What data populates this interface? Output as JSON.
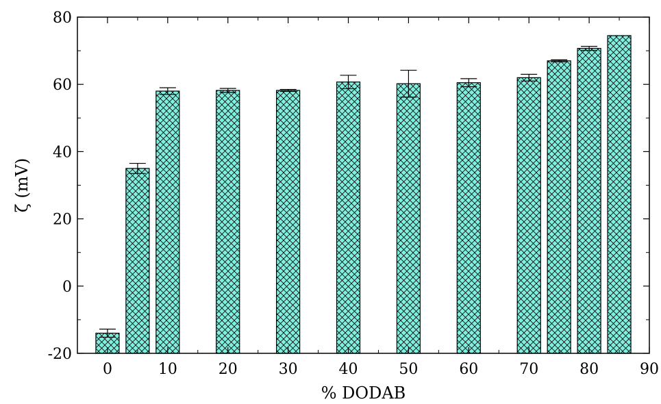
{
  "chart_data": {
    "type": "bar",
    "xlabel": "% DODAB",
    "ylabel": "ζ (mV)",
    "xlim": [
      -5,
      90
    ],
    "ylim": [
      -20,
      80
    ],
    "x_ticks": [
      0,
      10,
      20,
      30,
      40,
      50,
      60,
      70,
      80,
      90
    ],
    "y_ticks": [
      -20,
      0,
      20,
      40,
      60,
      80
    ],
    "bar_color": "#7ff0e0",
    "hatch": "crosshatch",
    "grid": false,
    "legend": "none",
    "series": [
      {
        "x": [
          0,
          5,
          10,
          20,
          30,
          40,
          50,
          60,
          70,
          75,
          80,
          85
        ],
        "values": [
          -14,
          35,
          58,
          58.2,
          58.2,
          60.7,
          60.2,
          60.5,
          62,
          67,
          70.7,
          74.5
        ],
        "errors": [
          1.2,
          1.5,
          1.0,
          0.6,
          0.3,
          2.0,
          4.0,
          1.2,
          1.0,
          0.3,
          0.6,
          0
        ]
      }
    ]
  }
}
